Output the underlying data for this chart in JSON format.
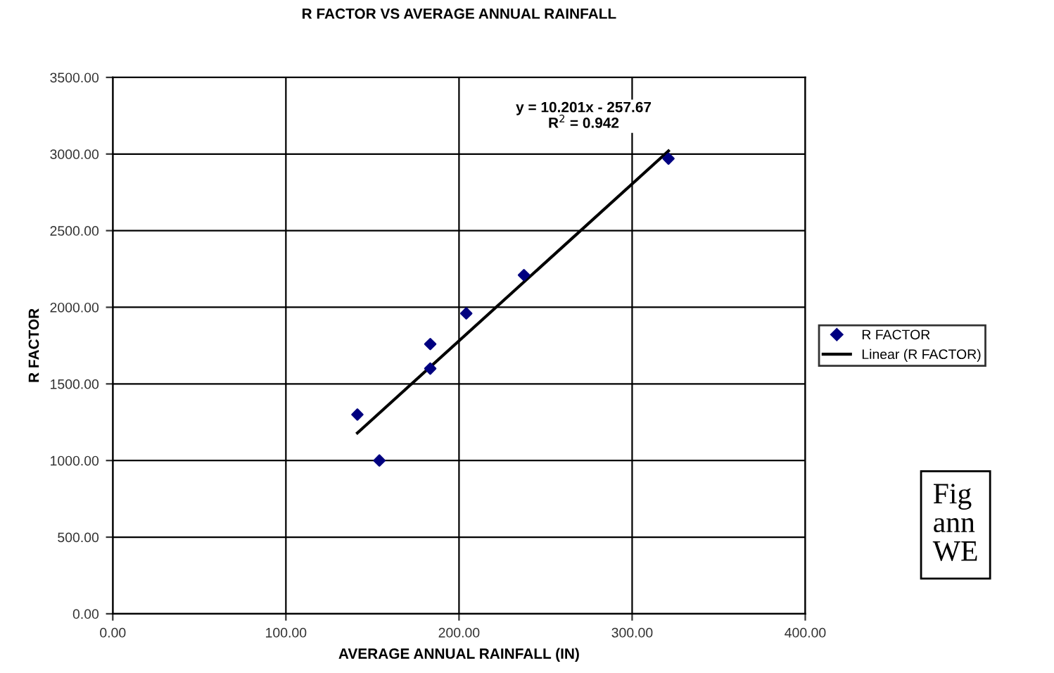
{
  "chart_data": {
    "type": "scatter",
    "title": "R FACTOR VS AVERAGE ANNUAL RAINFALL",
    "xlabel": "AVERAGE ANNUAL RAINFALL (IN)",
    "ylabel": "R FACTOR",
    "series": [
      {
        "name": "R FACTOR",
        "color": "#000080",
        "marker": "diamond",
        "x": [
          141.3,
          154,
          183.4,
          183.4,
          204.2,
          237.5,
          321
        ],
        "values": [
          1300,
          1000,
          1600,
          1760,
          1960,
          2210,
          2970
        ]
      },
      {
        "name": "Linear (R FACTOR)",
        "type": "line",
        "color": "#000000",
        "line_style": "solid",
        "x": [
          141.3,
          321
        ],
        "values": [
          1180,
          3020
        ]
      }
    ],
    "xlim": [
      0,
      400
    ],
    "ylim": [
      0,
      3500
    ],
    "xticks": [
      {
        "value": 0,
        "label": "0.00"
      },
      {
        "value": 100,
        "label": "100.00"
      },
      {
        "value": 200,
        "label": "200.00"
      },
      {
        "value": 300,
        "label": "300.00"
      },
      {
        "value": 400,
        "label": "400.00"
      }
    ],
    "yticks": [
      {
        "value": 0,
        "label": "0.00"
      },
      {
        "value": 500,
        "label": "500.00"
      },
      {
        "value": 1000,
        "label": "1000.00"
      },
      {
        "value": 1500,
        "label": "1500.00"
      },
      {
        "value": 2000,
        "label": "2000.00"
      },
      {
        "value": 2500,
        "label": "2500.00"
      },
      {
        "value": 3000,
        "label": "3000.00"
      },
      {
        "value": 3500,
        "label": "3500.00"
      }
    ],
    "grid": true,
    "legend": "right",
    "annotations": [
      "y = 10.201x - 257.67\nR$^{2}$ = 0.942",
      "Fig\nann\nWE"
    ]
  }
}
